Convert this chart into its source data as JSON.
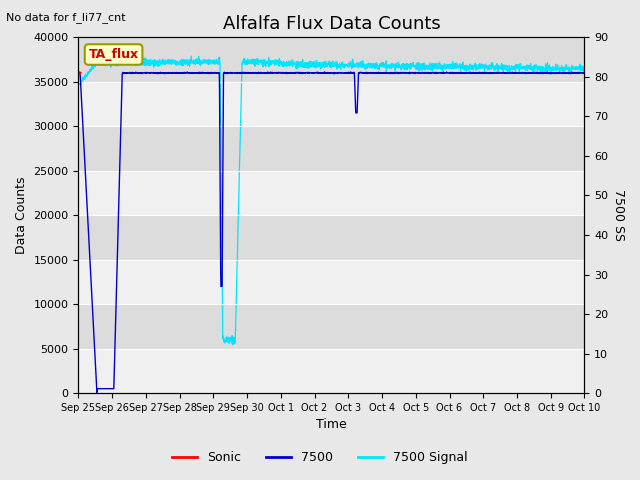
{
  "title": "Alfalfa Flux Data Counts",
  "top_left_text": "No data for f_li77_cnt",
  "legend_label_text": "TA_flux",
  "xlabel": "Time",
  "ylabel_left": "Data Counts",
  "ylabel_right": "7500 SS",
  "ylim_left": [
    0,
    40000
  ],
  "ylim_right": [
    0,
    90
  ],
  "xtick_labels": [
    "Sep 25",
    "Sep 26",
    "Sep 27",
    "Sep 28",
    "Sep 29",
    "Sep 30",
    "Oct 1",
    "Oct 2",
    "Oct 3",
    "Oct 4",
    "Oct 5",
    "Oct 6",
    "Oct 7",
    "Oct 8",
    "Oct 9",
    "Oct 10"
  ],
  "ytick_left": [
    0,
    5000,
    10000,
    15000,
    20000,
    25000,
    30000,
    35000,
    40000
  ],
  "ytick_right": [
    0,
    10,
    20,
    30,
    40,
    50,
    60,
    70,
    80,
    90
  ],
  "figure_bg": "#e8e8e8",
  "plot_bg_light": "#f0f0f0",
  "plot_bg_dark": "#dcdcdc",
  "line_sonic_color": "#ff0000",
  "line_7500_color": "#0000cc",
  "line_7500signal_color": "#00e5ff",
  "legend_entries": [
    "Sonic",
    "7500",
    "7500 Signal"
  ],
  "title_fontsize": 13,
  "label_fontsize": 9,
  "tick_fontsize": 8
}
